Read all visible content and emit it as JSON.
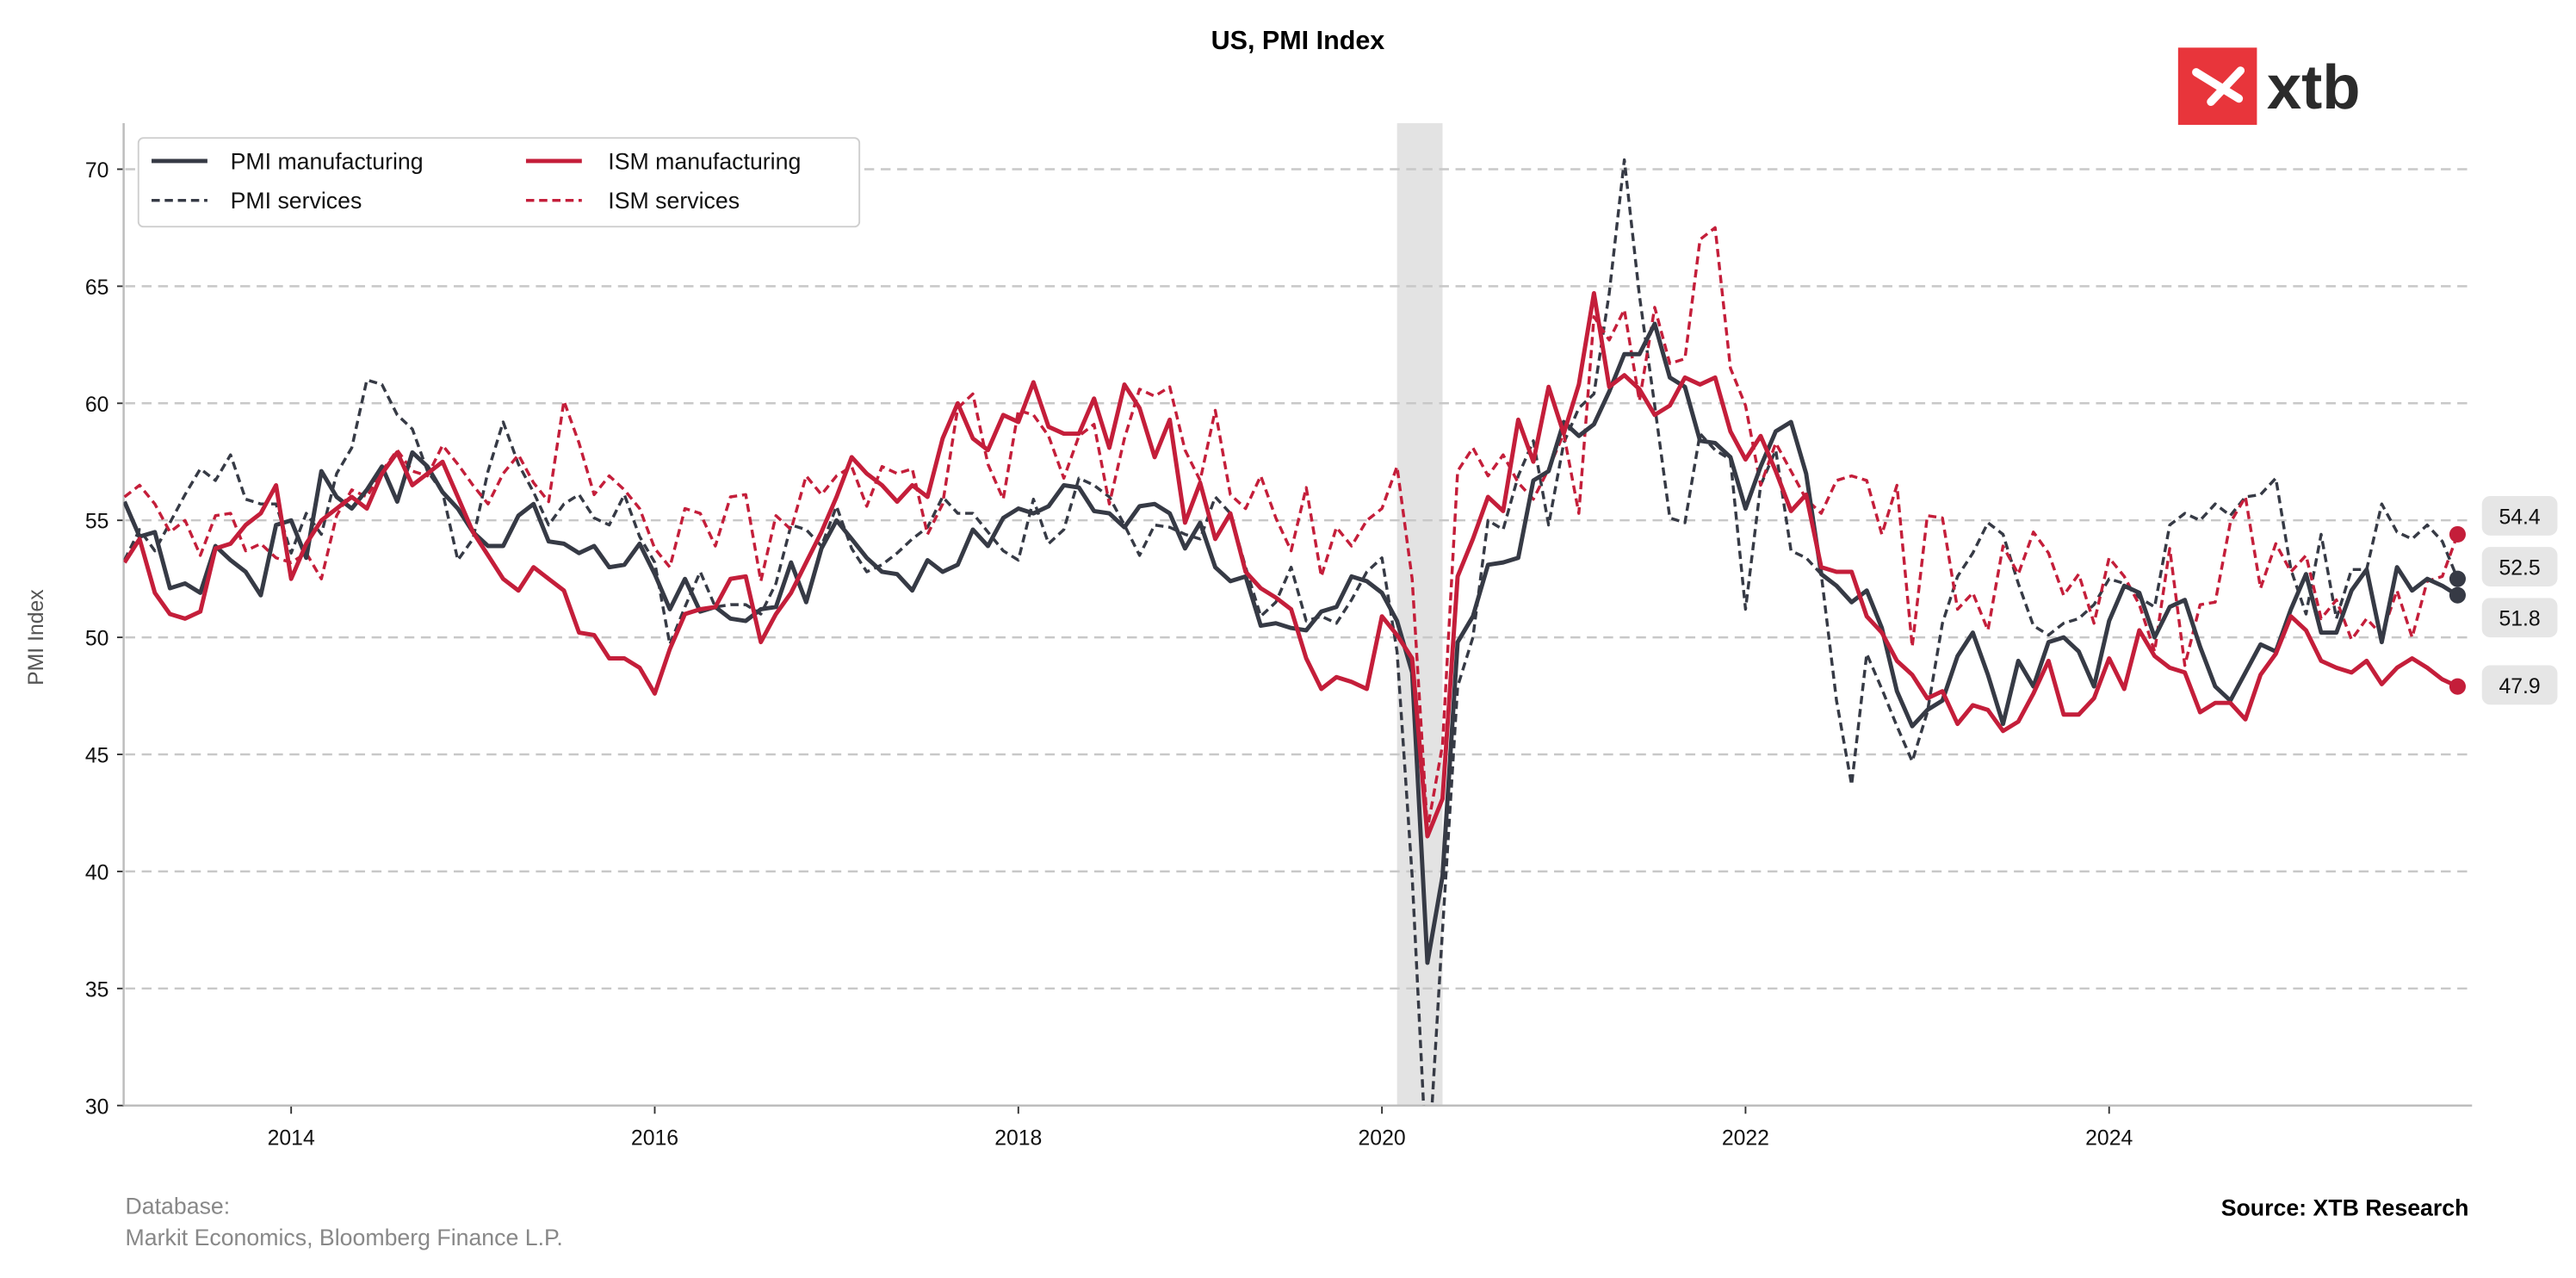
{
  "chart_data": {
    "type": "line",
    "title": "US, PMI Index",
    "xlabel": "",
    "ylabel": "PMI Index",
    "ylim": [
      30,
      72
    ],
    "xlim": [
      "2013-02",
      "2025-12"
    ],
    "grid": "horizontal dashed",
    "legend_position": "top-left",
    "x_ticks": [
      "2014",
      "2016",
      "2018",
      "2020",
      "2022",
      "2024"
    ],
    "y_ticks": [
      "30",
      "35",
      "40",
      "45",
      "50",
      "55",
      "60",
      "65",
      "70"
    ],
    "shaded_period": {
      "start": "2020-02",
      "end": "2020-04",
      "meaning": "recession"
    },
    "start_month": "2013-02",
    "frequency": "monthly",
    "series": [
      {
        "name": "PMI manufacturing",
        "color": "#363a45",
        "style": "solid",
        "last_label": "51.8",
        "values": [
          55.8,
          54.3,
          54.5,
          52.1,
          52.3,
          51.9,
          53.9,
          53.3,
          52.8,
          51.8,
          54.8,
          55.0,
          53.4,
          57.1,
          56.0,
          55.5,
          56.3,
          57.3,
          55.8,
          57.9,
          57.3,
          56.2,
          55.5,
          54.5,
          53.9,
          53.9,
          55.2,
          55.7,
          54.1,
          54.0,
          53.6,
          53.9,
          53.0,
          53.1,
          54.0,
          52.7,
          51.2,
          52.5,
          51.1,
          51.3,
          50.8,
          50.7,
          51.2,
          51.3,
          53.2,
          51.5,
          53.8,
          55.0,
          54.2,
          53.4,
          52.8,
          52.7,
          52.0,
          53.3,
          52.8,
          53.1,
          54.6,
          53.9,
          55.1,
          55.5,
          55.3,
          55.6,
          56.5,
          56.4,
          55.4,
          55.3,
          54.7,
          55.6,
          55.7,
          55.3,
          53.8,
          54.9,
          53.0,
          52.4,
          52.6,
          50.5,
          50.6,
          50.4,
          50.3,
          51.1,
          51.3,
          52.6,
          52.4,
          51.9,
          50.7,
          48.5,
          36.1,
          39.8,
          49.8,
          50.9,
          53.1,
          53.2,
          53.4,
          56.7,
          57.1,
          59.2,
          58.6,
          59.1,
          60.5,
          62.1,
          62.1,
          63.4,
          61.1,
          60.7,
          58.4,
          58.3,
          57.7,
          55.5,
          57.3,
          58.8,
          59.2,
          57.0,
          52.7,
          52.2,
          51.5,
          52.0,
          50.4,
          47.7,
          46.2,
          46.9,
          47.3,
          49.2,
          50.2,
          48.4,
          46.3,
          49.0,
          47.9,
          49.8,
          50.0,
          49.4,
          47.9,
          50.7,
          52.2,
          51.9,
          50.0,
          51.3,
          51.6,
          49.6,
          47.9,
          47.3,
          48.5,
          49.7,
          49.4,
          51.2,
          52.7,
          50.2,
          50.2,
          52.0,
          52.9,
          49.8,
          53.0,
          52.0,
          52.5,
          52.2,
          51.8
        ]
      },
      {
        "name": "ISM manufacturing",
        "color": "#c41e3a",
        "style": "solid",
        "last_label": "47.9",
        "values": [
          53.2,
          54.2,
          51.9,
          51.0,
          50.8,
          51.1,
          53.8,
          54.0,
          54.8,
          55.3,
          56.5,
          52.5,
          54.0,
          55.0,
          55.5,
          56.0,
          55.5,
          57.0,
          57.9,
          56.5,
          57.0,
          57.5,
          56.0,
          54.5,
          53.5,
          52.5,
          52.0,
          53.0,
          52.5,
          52.0,
          50.2,
          50.1,
          49.1,
          49.1,
          48.7,
          47.6,
          49.5,
          51.0,
          51.2,
          51.3,
          52.5,
          52.6,
          49.8,
          51.0,
          51.9,
          53.2,
          54.5,
          56.0,
          57.7,
          57.0,
          56.5,
          55.8,
          56.5,
          56.0,
          58.5,
          60.0,
          58.5,
          58.0,
          59.5,
          59.2,
          60.9,
          59.0,
          58.7,
          58.7,
          60.2,
          58.1,
          60.8,
          59.8,
          57.7,
          59.3,
          54.9,
          56.6,
          54.2,
          55.3,
          52.8,
          52.1,
          51.7,
          51.2,
          49.1,
          47.8,
          48.3,
          48.1,
          47.8,
          50.9,
          50.1,
          49.1,
          41.5,
          43.1,
          52.6,
          54.2,
          56.0,
          55.4,
          59.3,
          57.5,
          60.7,
          58.7,
          60.8,
          64.7,
          60.7,
          61.2,
          60.6,
          59.5,
          59.9,
          61.1,
          60.8,
          61.1,
          58.8,
          57.6,
          58.6,
          57.1,
          55.4,
          56.1,
          53.0,
          52.8,
          52.8,
          50.9,
          50.2,
          49.0,
          48.4,
          47.4,
          47.7,
          46.3,
          47.1,
          46.9,
          46.0,
          46.4,
          47.6,
          49.0,
          46.7,
          46.7,
          47.4,
          49.1,
          47.8,
          50.3,
          49.2,
          48.7,
          48.5,
          46.8,
          47.2,
          47.2,
          46.5,
          48.4,
          49.3,
          50.9,
          50.3,
          49.0,
          48.7,
          48.5,
          49.0,
          48.0,
          48.7,
          49.1,
          48.7,
          48.2,
          47.9
        ]
      },
      {
        "name": "PMI services",
        "color": "#363a45",
        "style": "dashed",
        "last_label": "52.5",
        "values": [
          53.3,
          54.6,
          53.7,
          54.9,
          56.1,
          57.2,
          56.7,
          57.8,
          55.9,
          55.7,
          55.7,
          53.6,
          55.3,
          54.4,
          57.0,
          58.1,
          61.0,
          60.8,
          59.5,
          58.9,
          57.1,
          56.2,
          53.3,
          54.2,
          57.1,
          59.2,
          57.4,
          56.2,
          54.8,
          55.7,
          56.1,
          55.1,
          54.8,
          56.1,
          54.3,
          53.2,
          49.7,
          51.3,
          52.8,
          51.3,
          51.4,
          51.4,
          51.0,
          52.3,
          54.8,
          54.6,
          53.9,
          55.6,
          53.8,
          52.8,
          53.1,
          53.6,
          54.2,
          54.7,
          56.0,
          55.3,
          55.3,
          54.5,
          53.7,
          53.3,
          55.9,
          54.0,
          54.6,
          56.8,
          56.5,
          56.0,
          54.8,
          53.5,
          54.8,
          54.7,
          54.4,
          54.2,
          56.0,
          55.3,
          53.0,
          50.9,
          51.5,
          53.0,
          50.7,
          50.9,
          50.6,
          51.6,
          52.8,
          53.4,
          49.4,
          39.8,
          26.7,
          37.5,
          47.9,
          50.0,
          55.0,
          54.6,
          56.9,
          58.4,
          54.8,
          58.3,
          59.8,
          60.4,
          64.7,
          70.4,
          64.6,
          59.9,
          55.1,
          54.9,
          58.7,
          58.0,
          57.6,
          51.2,
          56.5,
          58.0,
          53.7,
          53.4,
          52.7,
          47.3,
          43.7,
          49.3,
          47.8,
          46.2,
          44.7,
          46.8,
          50.6,
          52.6,
          53.6,
          54.9,
          54.4,
          52.3,
          50.5,
          50.1,
          50.6,
          50.8,
          51.4,
          52.5,
          52.3,
          51.7,
          51.3,
          54.8,
          55.3,
          55.0,
          55.7,
          55.2,
          56.0,
          56.1,
          56.8,
          52.9,
          51.0,
          54.4,
          50.8,
          52.9,
          52.9,
          55.7,
          54.5,
          54.2,
          54.8,
          54.1,
          52.5
        ]
      },
      {
        "name": "ISM services",
        "color": "#c41e3a",
        "style": "dashed",
        "last_label": "54.4",
        "values": [
          56.0,
          56.5,
          55.7,
          54.5,
          55.0,
          53.5,
          55.2,
          55.3,
          53.7,
          54.0,
          53.4,
          53.2,
          53.6,
          52.5,
          55.2,
          56.3,
          56.0,
          57.1,
          58.0,
          57.1,
          56.9,
          58.2,
          57.4,
          56.5,
          55.7,
          57.0,
          57.8,
          56.6,
          55.8,
          60.1,
          58.3,
          56.1,
          56.9,
          56.3,
          55.5,
          53.8,
          53.0,
          55.5,
          55.3,
          53.9,
          56.0,
          56.1,
          52.4,
          55.2,
          54.6,
          56.9,
          56.1,
          56.9,
          57.3,
          55.6,
          57.3,
          57.0,
          57.2,
          54.4,
          55.7,
          59.8,
          60.4,
          57.4,
          55.9,
          59.7,
          59.5,
          58.6,
          56.8,
          58.6,
          59.1,
          55.7,
          58.5,
          60.6,
          60.3,
          60.7,
          58.0,
          56.7,
          59.7,
          56.1,
          55.5,
          56.9,
          55.1,
          53.7,
          56.4,
          52.6,
          54.7,
          53.9,
          55.0,
          55.5,
          57.3,
          52.5,
          41.8,
          45.4,
          57.1,
          58.1,
          56.9,
          57.8,
          56.6,
          55.9,
          57.2,
          58.7,
          55.3,
          63.7,
          62.7,
          64.0,
          60.1,
          64.1,
          61.7,
          61.9,
          67.0,
          67.5,
          61.5,
          59.9,
          56.5,
          58.3,
          57.1,
          55.9,
          55.3,
          56.7,
          56.9,
          56.7,
          54.4,
          56.5,
          49.6,
          55.2,
          55.1,
          51.2,
          51.9,
          50.3,
          53.9,
          52.7,
          54.5,
          53.6,
          51.8,
          52.7,
          50.6,
          53.4,
          52.6,
          51.4,
          49.4,
          53.8,
          48.8,
          51.4,
          51.5,
          54.9,
          56.0,
          52.1,
          54.0,
          52.8,
          53.5,
          50.8,
          51.6,
          49.9,
          50.8,
          50.1,
          52.0,
          50.0,
          52.4,
          52.6,
          54.4
        ]
      }
    ]
  },
  "footer": {
    "database_label": "Database:",
    "database_sources": "Markit Economics, Bloomberg Finance L.P.",
    "source": "Source: XTB Research"
  },
  "logo": {
    "text": "xtb",
    "color": "#e8353b"
  }
}
